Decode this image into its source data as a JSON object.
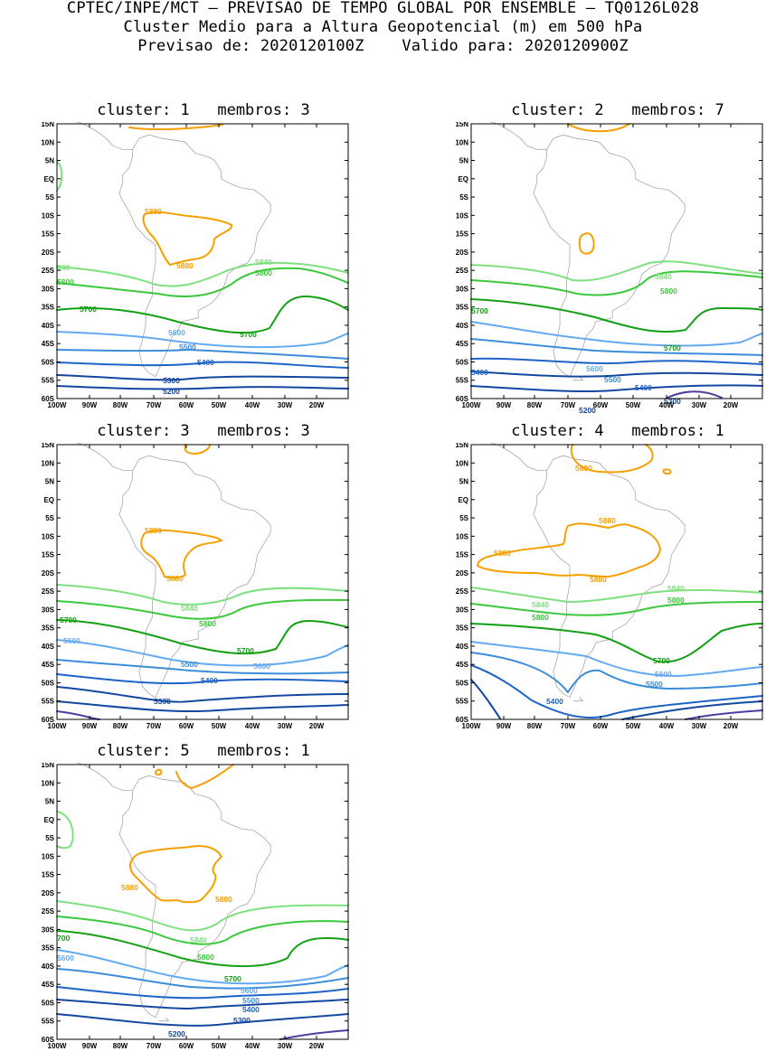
{
  "header": {
    "line1": "CPTEC/INPE/MCT — PREVISAO DE TEMPO GLOBAL POR ENSEMBLE — TQ0126L028",
    "line2": "Cluster Medio para a Altura Geopotencial (m) em 500 hPa",
    "line3": "Previsao de: 2020120100Z    Valido para: 2020120900Z"
  },
  "axes": {
    "lat_labels": [
      "15N",
      "10N",
      "5N",
      "EQ",
      "5S",
      "10S",
      "15S",
      "20S",
      "25S",
      "30S",
      "35S",
      "40S",
      "45S",
      "50S",
      "55S",
      "60S"
    ],
    "lon_labels": [
      "100W",
      "90W",
      "80W",
      "70W",
      "60W",
      "50W",
      "40W",
      "30W",
      "20W"
    ]
  },
  "colors": {
    "c5880": "#f5a000",
    "c5840": "#7ee07e",
    "c5800": "#3cc83c",
    "c5700": "#14a014",
    "c5600": "#64aaf0",
    "c5500": "#3c8cdc",
    "c5400": "#1e64c8",
    "c5300": "#1448a0",
    "c5200": "#503ca0",
    "coast": "#a8a8a8"
  },
  "panels": [
    {
      "title": "cluster: 1   membros: 3",
      "labels": [
        {
          "text": "5880",
          "color": "c5880"
        },
        {
          "text": "5880",
          "color": "c5880"
        },
        {
          "text": "840",
          "color": "c5840"
        },
        {
          "text": "5840",
          "color": "c5840"
        },
        {
          "text": "5800",
          "color": "c5800"
        },
        {
          "text": "5800",
          "color": "c5800"
        },
        {
          "text": "5700",
          "color": "c5700"
        },
        {
          "text": "5700",
          "color": "c5700"
        },
        {
          "text": "5600",
          "color": "c5600"
        },
        {
          "text": "5500",
          "color": "c5500"
        },
        {
          "text": "5400",
          "color": "c5400"
        },
        {
          "text": "5300",
          "color": "c5300"
        },
        {
          "text": "5200",
          "color": "c5300"
        }
      ]
    },
    {
      "title": "cluster: 2   membros: 7",
      "labels": [
        {
          "text": "5840",
          "color": "c5840"
        },
        {
          "text": "5800",
          "color": "c5800"
        },
        {
          "text": "5700",
          "color": "c5700"
        },
        {
          "text": "5700",
          "color": "c5700"
        },
        {
          "text": "5600",
          "color": "c5600"
        },
        {
          "text": "5500",
          "color": "c5500"
        },
        {
          "text": "5400",
          "color": "c5400"
        },
        {
          "text": "5400",
          "color": "c5400"
        },
        {
          "text": "5300",
          "color": "c5300"
        },
        {
          "text": "5200",
          "color": "c5300"
        }
      ]
    },
    {
      "title": "cluster: 3   membros: 3",
      "labels": [
        {
          "text": "5880",
          "color": "c5880"
        },
        {
          "text": "5880",
          "color": "c5880"
        },
        {
          "text": "5840",
          "color": "c5840"
        },
        {
          "text": "5800",
          "color": "c5800"
        },
        {
          "text": "5700",
          "color": "c5700"
        },
        {
          "text": "5700",
          "color": "c5700"
        },
        {
          "text": "5600",
          "color": "c5600"
        },
        {
          "text": "5600",
          "color": "c5600"
        },
        {
          "text": "5500",
          "color": "c5500"
        },
        {
          "text": "5400",
          "color": "c5400"
        },
        {
          "text": "5300",
          "color": "c5300"
        }
      ]
    },
    {
      "title": "cluster: 4   membros: 1",
      "labels": [
        {
          "text": "5880",
          "color": "c5880"
        },
        {
          "text": "5880",
          "color": "c5880"
        },
        {
          "text": "5880",
          "color": "c5880"
        },
        {
          "text": "5880",
          "color": "c5880"
        },
        {
          "text": "5840",
          "color": "c5840"
        },
        {
          "text": "5840",
          "color": "c5840"
        },
        {
          "text": "5800",
          "color": "c5800"
        },
        {
          "text": "5800",
          "color": "c5800"
        },
        {
          "text": "5700",
          "color": "c5700"
        },
        {
          "text": "5600",
          "color": "c5600"
        },
        {
          "text": "5500",
          "color": "c5500"
        },
        {
          "text": "5400",
          "color": "c5400"
        }
      ]
    },
    {
      "title": "cluster: 5   membros: 1",
      "labels": [
        {
          "text": "5880",
          "color": "c5880"
        },
        {
          "text": "5880",
          "color": "c5880"
        },
        {
          "text": "700",
          "color": "c5700"
        },
        {
          "text": "5600",
          "color": "c5600"
        },
        {
          "text": "5840",
          "color": "c5840"
        },
        {
          "text": "5800",
          "color": "c5800"
        },
        {
          "text": "5700",
          "color": "c5700"
        },
        {
          "text": "5600",
          "color": "c5600"
        },
        {
          "text": "5500",
          "color": "c5500"
        },
        {
          "text": "5400",
          "color": "c5400"
        },
        {
          "text": "5300",
          "color": "c5300"
        },
        {
          "text": "5200",
          "color": "c5300"
        }
      ]
    }
  ]
}
